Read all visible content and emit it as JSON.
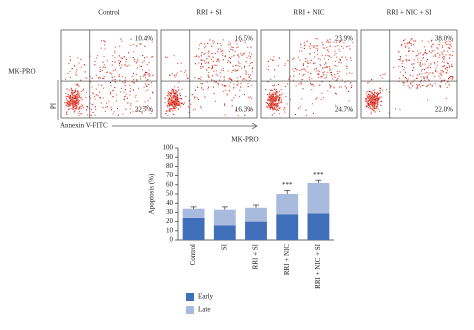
{
  "flow_cytometry": {
    "row_label": "MK-PRO",
    "x_label": "Annexin V-FITC",
    "y_label": "PI",
    "panels": [
      {
        "title": "Control",
        "upper_right": "10.4%",
        "lower_right": "22.7%"
      },
      {
        "title": "RRI + SI",
        "upper_right": "16.5%",
        "lower_right": "16.3%"
      },
      {
        "title": "RRI + NIC",
        "upper_right": "23.9%",
        "lower_right": "24.7%"
      },
      {
        "title": "RRI + NIC + SI",
        "upper_right": "38.0%",
        "lower_right": "22.0%"
      }
    ]
  },
  "chart_data": {
    "type": "stacked_bar",
    "title": "MK-PRO",
    "y_label": "Apoptosis (%)",
    "categories": [
      "Control",
      "SI",
      "RRI + SI",
      "RRI + NIC",
      "RRI + NIC + SI"
    ],
    "series": [
      {
        "name": "Early",
        "color": "#3f6fb8",
        "values": [
          24,
          16,
          20,
          28,
          29
        ]
      },
      {
        "name": "Late",
        "color": "#a9badf",
        "values": [
          10,
          17,
          15,
          22,
          33
        ],
        "errors": [
          2,
          3,
          3,
          4,
          3
        ]
      }
    ],
    "annotations": [
      null,
      null,
      null,
      "***",
      "***"
    ],
    "ylim": [
      0,
      100
    ],
    "yticks": [
      0,
      10,
      20,
      30,
      40,
      50,
      60,
      70,
      80,
      90,
      100
    ]
  }
}
